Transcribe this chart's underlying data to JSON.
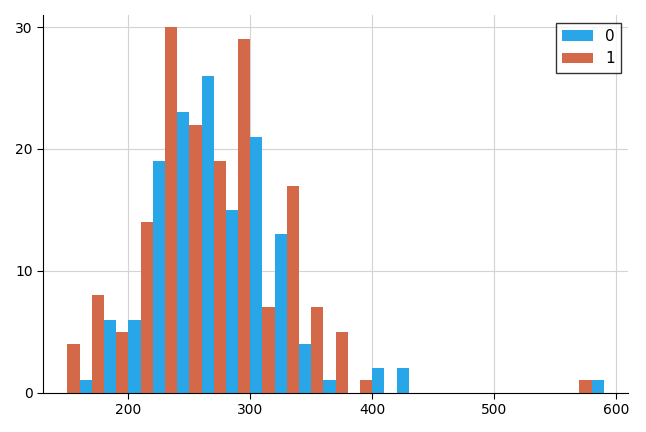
{
  "bins": [
    150,
    170,
    190,
    210,
    230,
    250,
    270,
    290,
    310,
    330,
    350,
    370,
    390,
    410,
    570
  ],
  "group0_counts": [
    1,
    6,
    6,
    19,
    23,
    26,
    15,
    21,
    13,
    4,
    1,
    0,
    2,
    2,
    1
  ],
  "group1_counts": [
    4,
    8,
    5,
    14,
    30,
    22,
    19,
    29,
    7,
    17,
    7,
    5,
    1,
    0,
    1
  ],
  "color0": "#29a6e8",
  "color1": "#d4694a",
  "legend_labels": [
    "0",
    "1"
  ],
  "xlim": [
    130,
    610
  ],
  "ylim": [
    0,
    31
  ],
  "yticks": [
    0,
    10,
    20,
    30
  ],
  "xticks": [
    200,
    300,
    400,
    500,
    600
  ],
  "bin_width": 20,
  "figsize": [
    6.46,
    4.32
  ],
  "dpi": 100
}
